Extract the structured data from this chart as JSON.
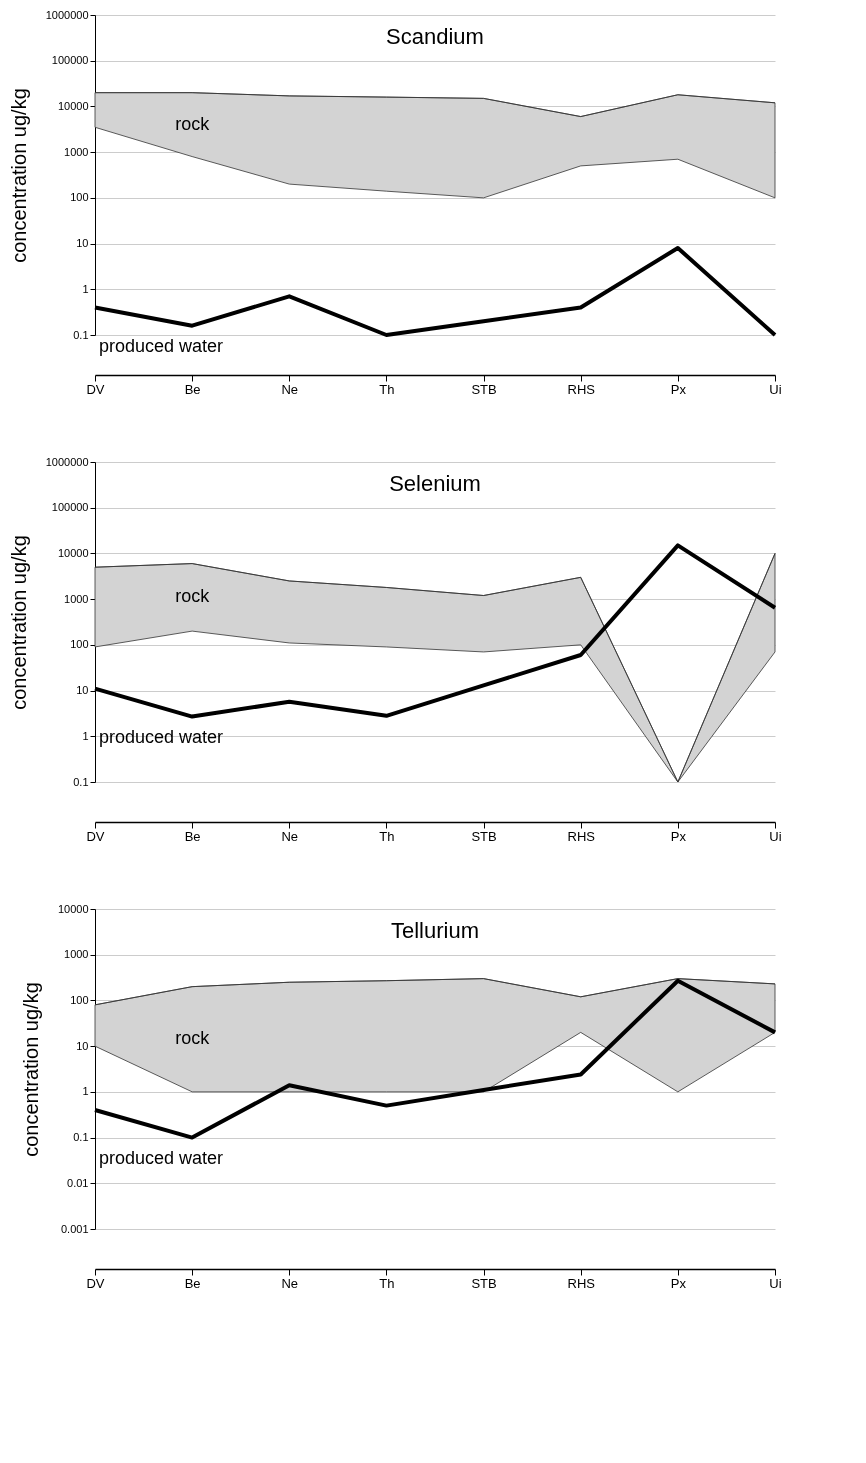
{
  "chart_data": [
    {
      "type": "line",
      "title": "Scandium",
      "ylabel": "concentration ug/kg",
      "categories": [
        "DV",
        "Be",
        "Ne",
        "Th",
        "STB",
        "RHS",
        "Px",
        "Ui"
      ],
      "log": true,
      "grid": "y",
      "legend": false,
      "marker": "none",
      "ylim": [
        0.1,
        1000000
      ],
      "yticks": [
        0.1,
        1,
        10,
        100,
        1000,
        10000,
        100000,
        1000000
      ],
      "series": [
        {
          "name": "rock",
          "color": "#333333",
          "values": [
            20000,
            20000,
            17000,
            16000,
            15000,
            6000,
            18000,
            12000
          ],
          "upper": [
            20000,
            20000,
            17000,
            16000,
            15000,
            6000,
            18000,
            12000
          ],
          "lower": [
            3500,
            800,
            200,
            140,
            100,
            500,
            700,
            100
          ]
        },
        {
          "name": "produced water",
          "type": "line",
          "color": "#000000",
          "values": [
            0.4,
            0.16,
            0.7,
            0.1,
            0.2,
            0.4,
            8,
            0.1
          ]
        }
      ]
    },
    {
      "type": "line",
      "title": "Selenium",
      "ylabel": "concentration ug/kg",
      "categories": [
        "DV",
        "Be",
        "Ne",
        "Th",
        "STB",
        "RHS",
        "Px",
        "Ui"
      ],
      "log": true,
      "grid": "y",
      "legend": false,
      "marker": "none",
      "ylim": [
        0.1,
        1000000
      ],
      "yticks": [
        0.1,
        1,
        10,
        100,
        1000,
        10000,
        100000,
        1000000
      ],
      "series": [
        {
          "name": "rock",
          "color": "#333333",
          "values": [
            5000,
            6000,
            2500,
            1800,
            1200,
            3000,
            0.1,
            10000
          ],
          "upper": [
            5000,
            6000,
            2500,
            1800,
            1200,
            3000,
            0.1,
            10000
          ],
          "lower": [
            90,
            200,
            110,
            90,
            70,
            100,
            0.1,
            70
          ]
        },
        {
          "name": "produced water",
          "type": "line",
          "color": "#000000",
          "values": [
            11,
            2.7,
            5.7,
            2.8,
            13,
            60,
            15000,
            650
          ]
        }
      ]
    },
    {
      "type": "line",
      "title": "Tellurium",
      "ylabel": "concentration ug/kg",
      "categories": [
        "DV",
        "Be",
        "Ne",
        "Th",
        "STB",
        "RHS",
        "Px",
        "Ui"
      ],
      "log": true,
      "grid": "y",
      "legend": false,
      "marker": "none",
      "ylim": [
        0.001,
        10000
      ],
      "yticks": [
        0.001,
        0.01,
        0.1,
        1,
        10,
        100,
        1000,
        10000
      ],
      "series": [
        {
          "name": "rock",
          "color": "#333333",
          "values": [
            80,
            200,
            250,
            270,
            300,
            120,
            300,
            230
          ],
          "upper": [
            80,
            200,
            250,
            270,
            300,
            120,
            300,
            230
          ],
          "lower": [
            10,
            1,
            1,
            1,
            1,
            20,
            1,
            20
          ]
        },
        {
          "name": "produced water",
          "type": "line",
          "color": "#000000",
          "values": [
            0.4,
            0.1,
            1.4,
            0.5,
            1.1,
            2.4,
            270,
            20
          ]
        }
      ]
    }
  ]
}
